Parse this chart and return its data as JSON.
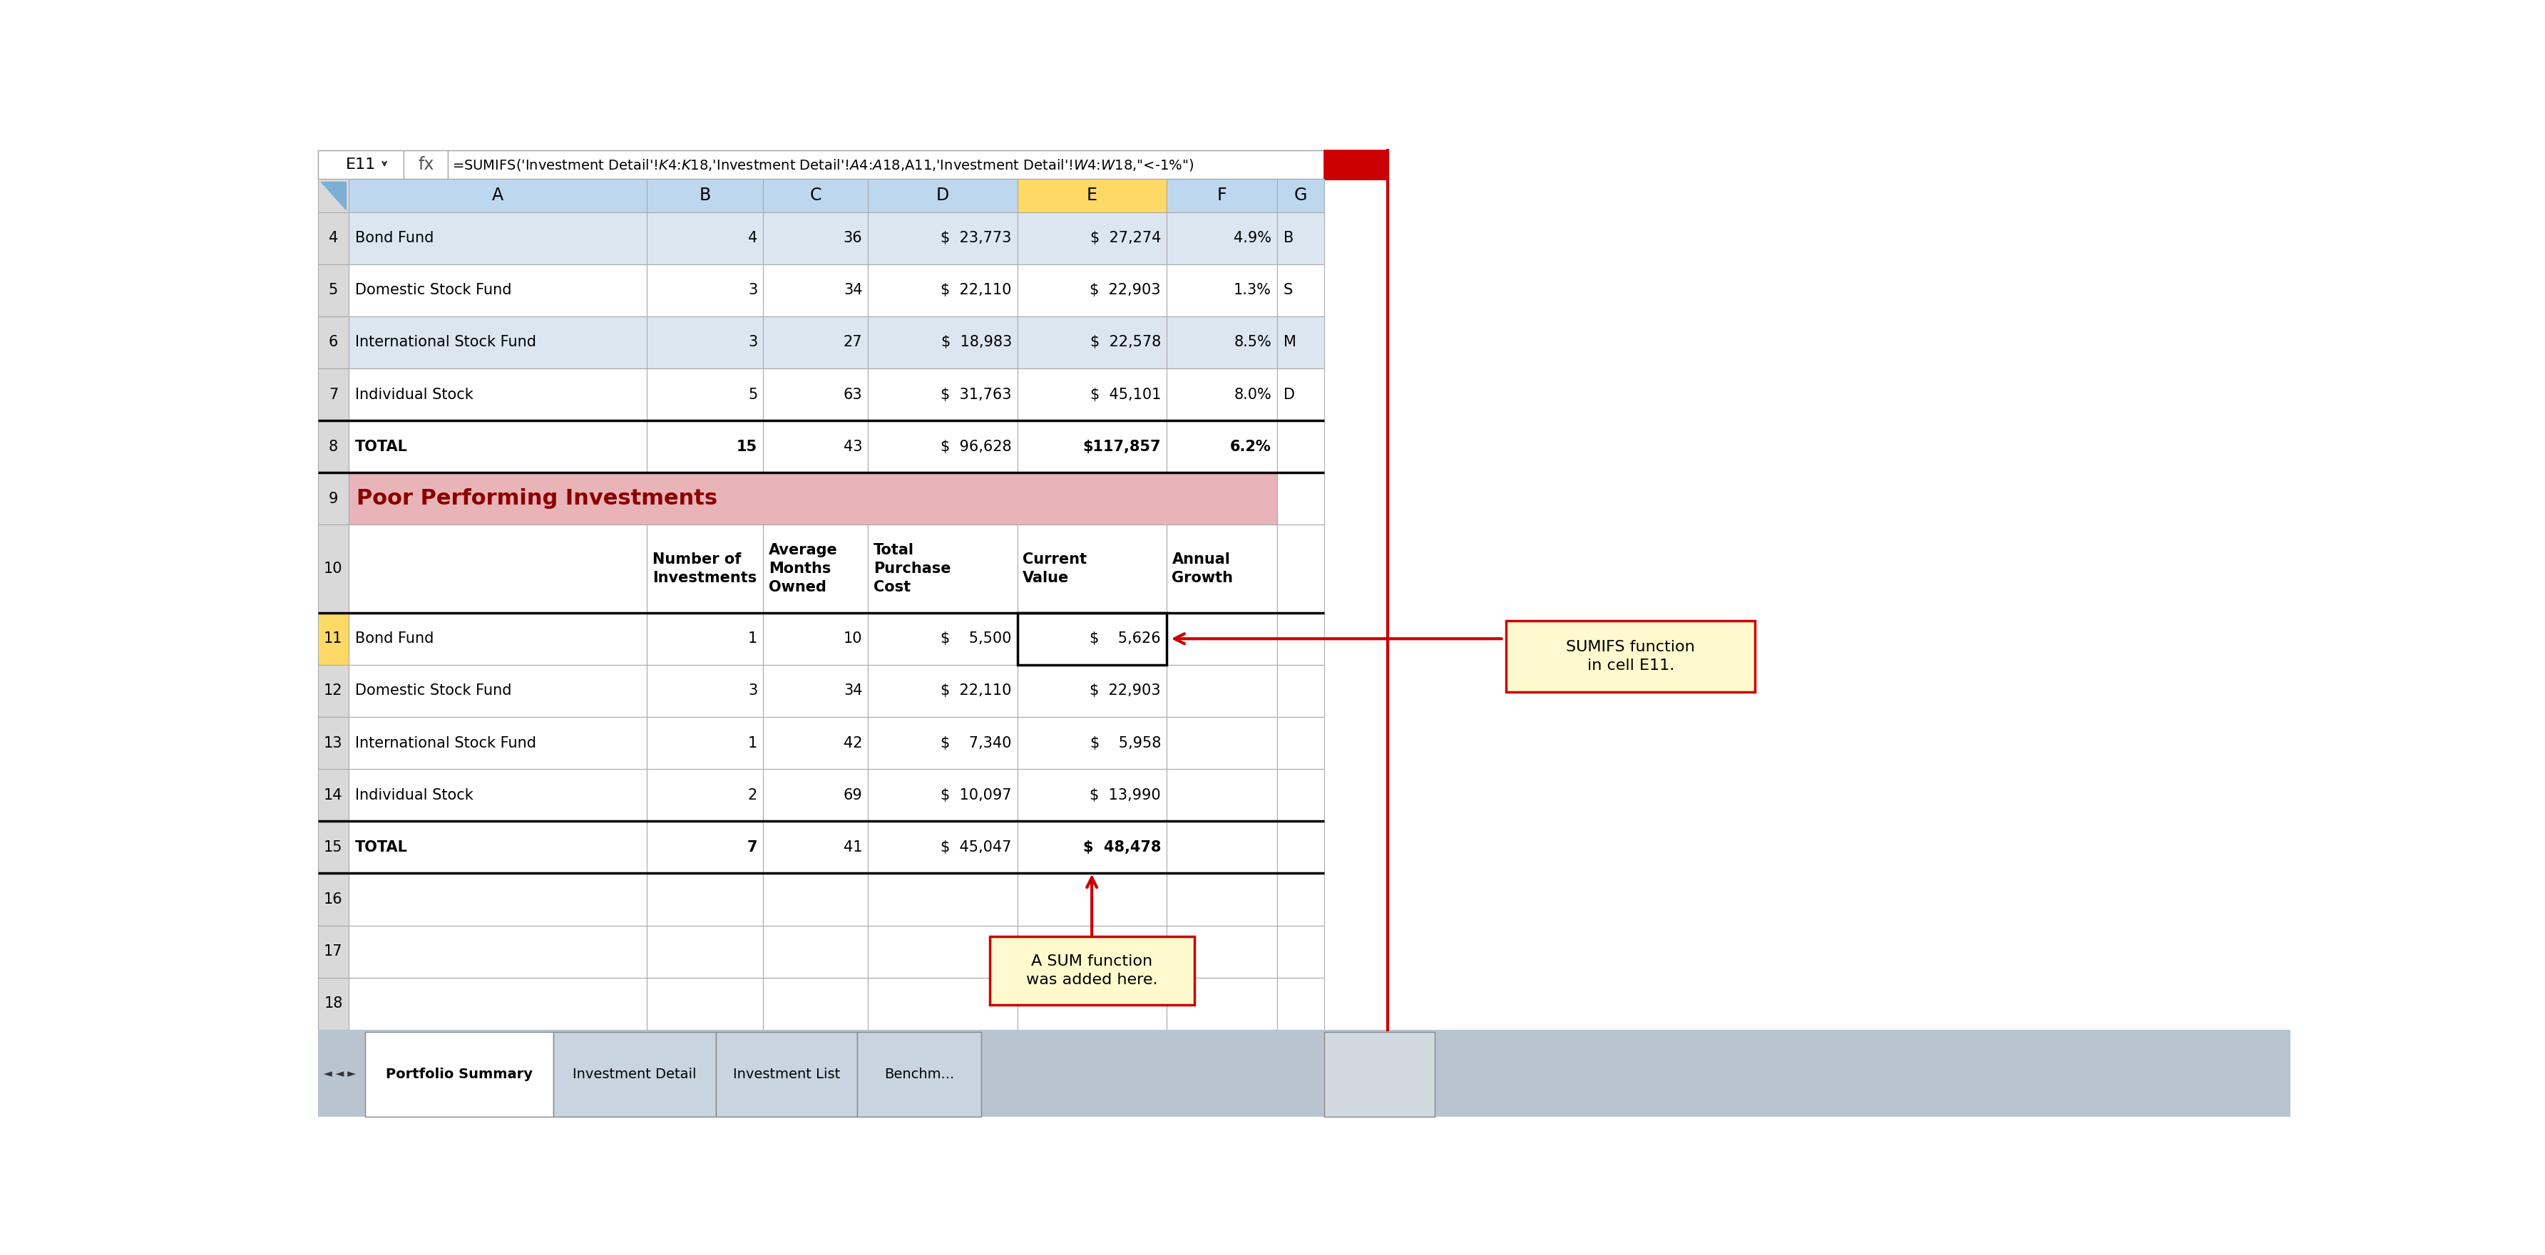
{
  "formula_bar_text": "=SUMIFS('Investment Detail'!$K$4:$K$18,'Investment Detail'!$A$4:$A$18,A11,'Investment Detail'!$W$4:$W$18,\"<-1%\")",
  "cell_ref": "E11",
  "columns": [
    "A",
    "B",
    "C",
    "D",
    "E",
    "F",
    "G"
  ],
  "col_header_bg": "#BDD7EE",
  "col_E_header_bg": "#FFD966",
  "row_header_bg": "#D9D9D9",
  "top_row_bg_even": "#DCE6F1",
  "top_row_bg_odd": "#FFFFFF",
  "poor_header_bg": "#E8B4B8",
  "poor_text_color": "#8B0000",
  "row11_bg": "#FFD966",
  "white": "#FFFFFF",
  "grid_color": "#AAAAAA",
  "thick_line_color": "#000000",
  "tab_bar_bg": "#B8C4D0",
  "active_tab_bg": "#FFFFFF",
  "inactive_tab_bg": "#D0D8E0",
  "annotation_bg": "#FFFACD",
  "annotation_border": "#CC0000",
  "arrow_color": "#CC0000",
  "top_rows": [
    {
      "row": "4",
      "a": "Bond Fund",
      "b": "4",
      "c": "36",
      "d": "$  23,773",
      "e": "$  27,274",
      "f": "4.9%",
      "g": "B"
    },
    {
      "row": "5",
      "a": "Domestic Stock Fund",
      "b": "3",
      "c": "34",
      "d": "$  22,110",
      "e": "$  22,903",
      "f": "1.3%",
      "g": "S"
    },
    {
      "row": "6",
      "a": "International Stock Fund",
      "b": "3",
      "c": "27",
      "d": "$  18,983",
      "e": "$  22,578",
      "f": "8.5%",
      "g": "M"
    },
    {
      "row": "7",
      "a": "Individual Stock",
      "b": "5",
      "c": "63",
      "d": "$  31,763",
      "e": "$  45,101",
      "f": "8.0%",
      "g": "D"
    },
    {
      "row": "8",
      "a": "TOTAL",
      "b": "15",
      "c": "43",
      "d": "$  96,628",
      "e": "$117,857",
      "f": "6.2%",
      "g": "",
      "bold": true,
      "thick": true
    }
  ],
  "poor_rows": [
    {
      "row": "11",
      "a": "Bond Fund",
      "b": "1",
      "c": "10",
      "d": "$    5,500",
      "e": "$    5,626",
      "f": "",
      "highlight": true
    },
    {
      "row": "12",
      "a": "Domestic Stock Fund",
      "b": "3",
      "c": "34",
      "d": "$  22,110",
      "e": "$  22,903",
      "f": ""
    },
    {
      "row": "13",
      "a": "International Stock Fund",
      "b": "1",
      "c": "42",
      "d": "$    7,340",
      "e": "$    5,958",
      "f": ""
    },
    {
      "row": "14",
      "a": "Individual Stock",
      "b": "2",
      "c": "69",
      "d": "$  10,097",
      "e": "$  13,990",
      "f": ""
    },
    {
      "row": "15",
      "a": "TOTAL",
      "b": "7",
      "c": "41",
      "d": "$  45,047",
      "e": "$  48,478",
      "f": "",
      "bold": true,
      "thick": true
    }
  ],
  "sheet_tabs": [
    "Portfolio Summary",
    "Investment Detail",
    "Investment List",
    "Benchm..."
  ],
  "annotation1": "SUMIFS function\nin cell E11.",
  "annotation2": "A SUM function\nwas added here."
}
